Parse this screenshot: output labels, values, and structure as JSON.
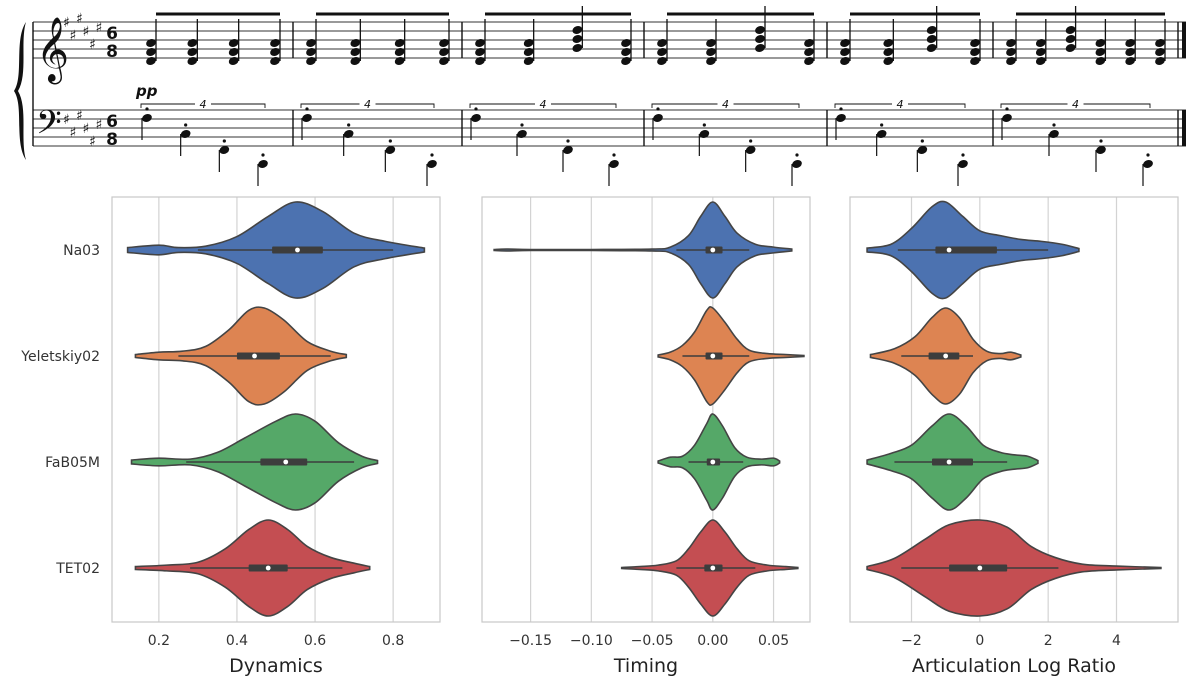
{
  "score": {
    "time_signature_top": "6",
    "time_signature_bottom": "8",
    "dynamic_marking": "pp",
    "tuplet_number": "4",
    "measures": 6
  },
  "colors": {
    "Na03": "#4c72b0",
    "Yeletskiy02": "#dd8452",
    "FaB05M": "#55a868",
    "TET02": "#c44e52"
  },
  "chart_data": [
    {
      "type": "violin",
      "categories": [
        "Na03",
        "Yeletskiy02",
        "FaB05M",
        "TET02"
      ],
      "xlabel": "Dynamics",
      "ylabel": "",
      "xlim": [
        0.08,
        0.92
      ],
      "xticks": [
        0.2,
        0.4,
        0.6,
        0.8
      ],
      "xtick_labels": [
        "0.2",
        "0.4",
        "0.6",
        "0.8"
      ],
      "grid": true,
      "series": [
        {
          "name": "Na03",
          "min": 0.12,
          "max": 0.88,
          "q1": 0.49,
          "median": 0.555,
          "q3": 0.62,
          "whisker_low": 0.3,
          "whisker_high": 0.8,
          "density": [
            [
              0.12,
              0.05
            ],
            [
              0.2,
              0.1
            ],
            [
              0.25,
              0.05
            ],
            [
              0.32,
              0.08
            ],
            [
              0.4,
              0.28
            ],
            [
              0.48,
              0.7
            ],
            [
              0.55,
              1.0
            ],
            [
              0.62,
              0.8
            ],
            [
              0.7,
              0.35
            ],
            [
              0.78,
              0.18
            ],
            [
              0.88,
              0.04
            ]
          ]
        },
        {
          "name": "Yeletskiy02",
          "min": 0.14,
          "max": 0.68,
          "q1": 0.4,
          "median": 0.445,
          "q3": 0.51,
          "whisker_low": 0.25,
          "whisker_high": 0.64,
          "density": [
            [
              0.14,
              0.03
            ],
            [
              0.2,
              0.08
            ],
            [
              0.26,
              0.1
            ],
            [
              0.32,
              0.2
            ],
            [
              0.38,
              0.55
            ],
            [
              0.43,
              0.95
            ],
            [
              0.47,
              1.0
            ],
            [
              0.52,
              0.75
            ],
            [
              0.58,
              0.3
            ],
            [
              0.64,
              0.1
            ],
            [
              0.68,
              0.03
            ]
          ]
        },
        {
          "name": "FaB05M",
          "min": 0.13,
          "max": 0.76,
          "q1": 0.46,
          "median": 0.525,
          "q3": 0.58,
          "whisker_low": 0.27,
          "whisker_high": 0.7,
          "density": [
            [
              0.13,
              0.04
            ],
            [
              0.2,
              0.08
            ],
            [
              0.28,
              0.06
            ],
            [
              0.35,
              0.2
            ],
            [
              0.42,
              0.5
            ],
            [
              0.5,
              0.85
            ],
            [
              0.55,
              1.0
            ],
            [
              0.6,
              0.85
            ],
            [
              0.66,
              0.4
            ],
            [
              0.72,
              0.12
            ],
            [
              0.76,
              0.03
            ]
          ]
        },
        {
          "name": "TET02",
          "min": 0.14,
          "max": 0.74,
          "q1": 0.43,
          "median": 0.48,
          "q3": 0.53,
          "whisker_low": 0.28,
          "whisker_high": 0.67,
          "density": [
            [
              0.14,
              0.03
            ],
            [
              0.22,
              0.06
            ],
            [
              0.3,
              0.12
            ],
            [
              0.37,
              0.4
            ],
            [
              0.43,
              0.8
            ],
            [
              0.48,
              1.0
            ],
            [
              0.53,
              0.8
            ],
            [
              0.58,
              0.45
            ],
            [
              0.64,
              0.22
            ],
            [
              0.7,
              0.1
            ],
            [
              0.74,
              0.03
            ]
          ]
        }
      ]
    },
    {
      "type": "violin",
      "categories": [
        "Na03",
        "Yeletskiy02",
        "FaB05M",
        "TET02"
      ],
      "xlabel": "Timing",
      "ylabel": "",
      "xlim": [
        -0.19,
        0.08
      ],
      "xticks": [
        -0.15,
        -0.1,
        -0.05,
        0.0,
        0.05
      ],
      "xtick_labels": [
        "−0.15",
        "−0.10",
        "−0.05",
        "0.00",
        "0.05"
      ],
      "grid": true,
      "series": [
        {
          "name": "Na03",
          "min": -0.18,
          "max": 0.065,
          "q1": -0.006,
          "median": 0.0,
          "q3": 0.008,
          "whisker_low": -0.03,
          "whisker_high": 0.03,
          "density": [
            [
              -0.18,
              0.01
            ],
            [
              -0.17,
              0.02
            ],
            [
              -0.15,
              0.01
            ],
            [
              -0.1,
              0.01
            ],
            [
              -0.05,
              0.02
            ],
            [
              -0.035,
              0.06
            ],
            [
              -0.02,
              0.3
            ],
            [
              -0.01,
              0.7
            ],
            [
              0.0,
              1.0
            ],
            [
              0.01,
              0.7
            ],
            [
              0.02,
              0.35
            ],
            [
              0.035,
              0.12
            ],
            [
              0.05,
              0.06
            ],
            [
              0.065,
              0.02
            ]
          ]
        },
        {
          "name": "Yeletskiy02",
          "min": -0.045,
          "max": 0.075,
          "q1": -0.006,
          "median": 0.0,
          "q3": 0.008,
          "whisker_low": -0.025,
          "whisker_high": 0.03,
          "density": [
            [
              -0.045,
              0.02
            ],
            [
              -0.035,
              0.08
            ],
            [
              -0.025,
              0.22
            ],
            [
              -0.015,
              0.5
            ],
            [
              -0.005,
              0.95
            ],
            [
              0.0,
              1.0
            ],
            [
              0.01,
              0.7
            ],
            [
              0.02,
              0.35
            ],
            [
              0.03,
              0.12
            ],
            [
              0.045,
              0.05
            ],
            [
              0.06,
              0.03
            ],
            [
              0.075,
              0.01
            ]
          ]
        },
        {
          "name": "FaB05M",
          "min": -0.045,
          "max": 0.055,
          "q1": -0.005,
          "median": 0.0,
          "q3": 0.006,
          "whisker_low": -0.02,
          "whisker_high": 0.025,
          "density": [
            [
              -0.045,
              0.02
            ],
            [
              -0.035,
              0.1
            ],
            [
              -0.025,
              0.12
            ],
            [
              -0.015,
              0.35
            ],
            [
              -0.005,
              0.8
            ],
            [
              0.0,
              1.0
            ],
            [
              0.008,
              0.75
            ],
            [
              0.018,
              0.3
            ],
            [
              0.028,
              0.1
            ],
            [
              0.04,
              0.06
            ],
            [
              0.05,
              0.08
            ],
            [
              0.055,
              0.02
            ]
          ]
        },
        {
          "name": "TET02",
          "min": -0.075,
          "max": 0.07,
          "q1": -0.007,
          "median": 0.0,
          "q3": 0.008,
          "whisker_low": -0.03,
          "whisker_high": 0.035,
          "density": [
            [
              -0.075,
              0.01
            ],
            [
              -0.06,
              0.03
            ],
            [
              -0.045,
              0.06
            ],
            [
              -0.03,
              0.15
            ],
            [
              -0.02,
              0.4
            ],
            [
              -0.01,
              0.75
            ],
            [
              0.0,
              1.0
            ],
            [
              0.01,
              0.75
            ],
            [
              0.02,
              0.4
            ],
            [
              0.03,
              0.15
            ],
            [
              0.045,
              0.06
            ],
            [
              0.06,
              0.03
            ],
            [
              0.07,
              0.01
            ]
          ]
        }
      ]
    },
    {
      "type": "violin",
      "categories": [
        "Na03",
        "Yeletskiy02",
        "FaB05M",
        "TET02"
      ],
      "xlabel": "Articulation Log Ratio",
      "ylabel": "",
      "xlim": [
        -3.8,
        5.8
      ],
      "xticks": [
        -2,
        0,
        2,
        4
      ],
      "xtick_labels": [
        "−2",
        "0",
        "2",
        "4"
      ],
      "grid": true,
      "series": [
        {
          "name": "Na03",
          "min": -3.3,
          "max": 2.9,
          "q1": -1.3,
          "median": -0.9,
          "q3": 0.5,
          "whisker_low": -2.4,
          "whisker_high": 2.0,
          "density": [
            [
              -3.3,
              0.04
            ],
            [
              -2.6,
              0.12
            ],
            [
              -2.0,
              0.45
            ],
            [
              -1.4,
              0.9
            ],
            [
              -1.0,
              1.0
            ],
            [
              -0.5,
              0.7
            ],
            [
              0.0,
              0.4
            ],
            [
              0.6,
              0.3
            ],
            [
              1.2,
              0.22
            ],
            [
              1.8,
              0.18
            ],
            [
              2.4,
              0.12
            ],
            [
              2.9,
              0.03
            ]
          ]
        },
        {
          "name": "Yeletskiy02",
          "min": -3.2,
          "max": 1.2,
          "q1": -1.5,
          "median": -1.0,
          "q3": -0.6,
          "whisker_low": -2.3,
          "whisker_high": -0.2,
          "density": [
            [
              -3.2,
              0.03
            ],
            [
              -2.5,
              0.15
            ],
            [
              -1.9,
              0.4
            ],
            [
              -1.4,
              0.8
            ],
            [
              -1.0,
              1.0
            ],
            [
              -0.6,
              0.8
            ],
            [
              -0.2,
              0.35
            ],
            [
              0.2,
              0.1
            ],
            [
              0.6,
              0.05
            ],
            [
              0.9,
              0.08
            ],
            [
              1.2,
              0.02
            ]
          ]
        },
        {
          "name": "FaB05M",
          "min": -3.3,
          "max": 1.7,
          "q1": -1.4,
          "median": -0.9,
          "q3": -0.2,
          "whisker_low": -2.5,
          "whisker_high": 0.8,
          "density": [
            [
              -3.3,
              0.04
            ],
            [
              -2.6,
              0.18
            ],
            [
              -2.0,
              0.35
            ],
            [
              -1.4,
              0.75
            ],
            [
              -0.9,
              1.0
            ],
            [
              -0.4,
              0.75
            ],
            [
              0.1,
              0.35
            ],
            [
              0.6,
              0.2
            ],
            [
              1.0,
              0.15
            ],
            [
              1.4,
              0.12
            ],
            [
              1.7,
              0.03
            ]
          ]
        },
        {
          "name": "TET02",
          "min": -3.3,
          "max": 5.3,
          "q1": -0.9,
          "median": 0.0,
          "q3": 0.8,
          "whisker_low": -2.3,
          "whisker_high": 2.3,
          "density": [
            [
              -3.3,
              0.03
            ],
            [
              -2.5,
              0.2
            ],
            [
              -1.6,
              0.6
            ],
            [
              -0.9,
              0.9
            ],
            [
              0.0,
              1.0
            ],
            [
              0.8,
              0.85
            ],
            [
              1.5,
              0.45
            ],
            [
              2.2,
              0.22
            ],
            [
              3.0,
              0.08
            ],
            [
              4.0,
              0.04
            ],
            [
              5.3,
              0.01
            ]
          ]
        }
      ]
    }
  ]
}
